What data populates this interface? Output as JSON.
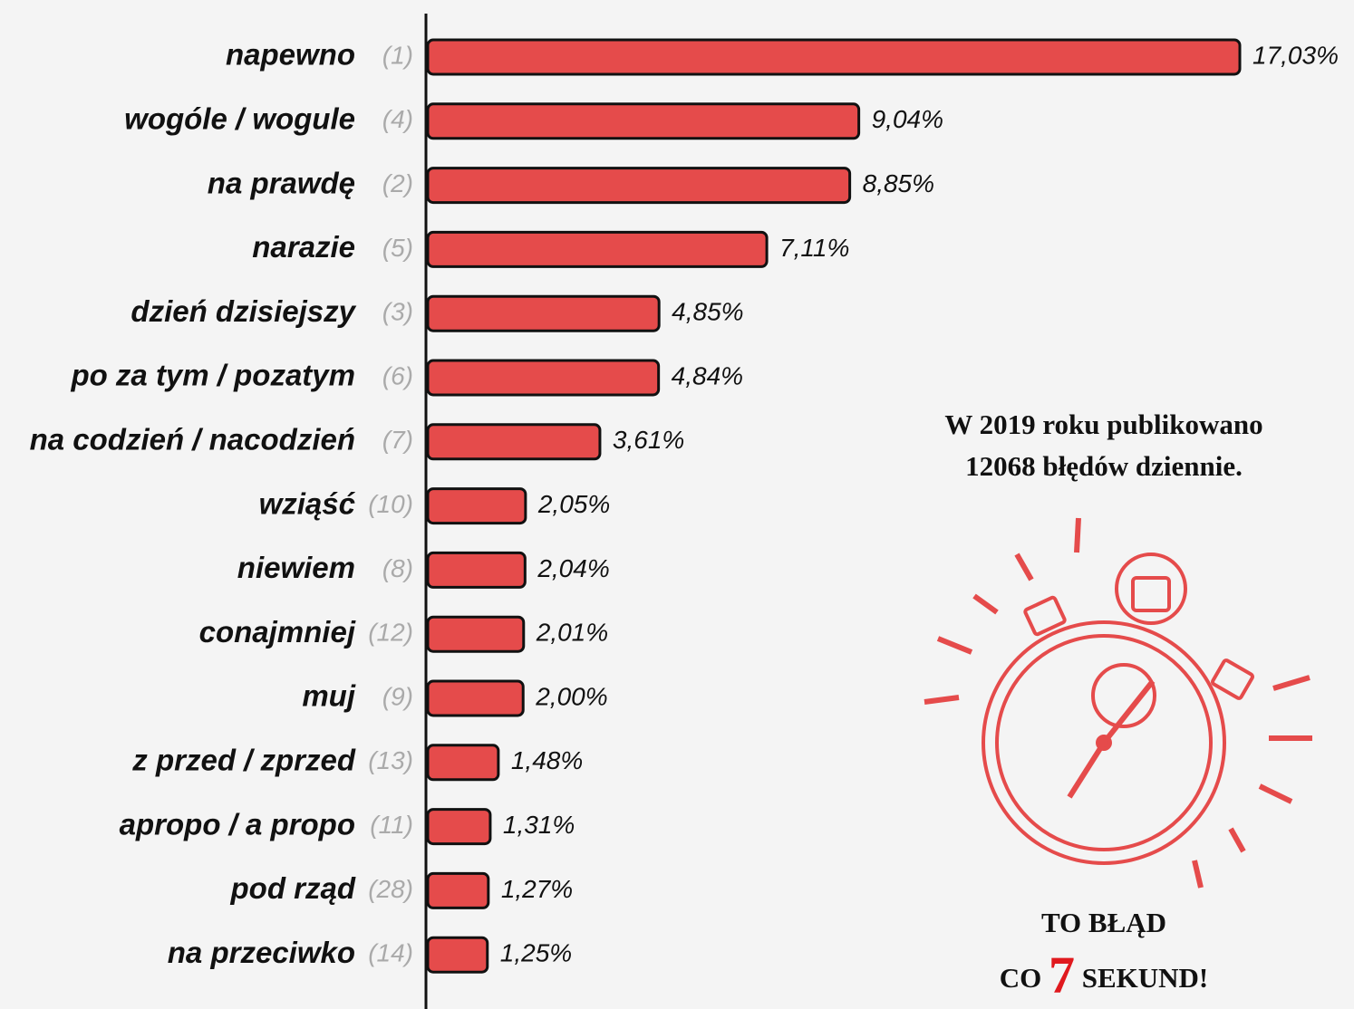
{
  "chart_data": {
    "type": "bar",
    "orientation": "horizontal",
    "categories": [
      "napewno",
      "wogóle / wogule",
      "na  prawdę",
      "narazie",
      "dzień dzisiejszy",
      "po za tym / pozatym",
      "na codzień / nacodzień",
      "wziąść",
      "niewiem",
      "conajmniej",
      "muj",
      "z przed / zprzed",
      "apropo / a propo",
      "pod rząd",
      "na przeciwko"
    ],
    "category_ranks": [
      "(1)",
      "(4)",
      "(2)",
      "(5)",
      "(3)",
      "(6)",
      "(7)",
      "(10)",
      "(8)",
      "(12)",
      "(9)",
      "(13)",
      "(11)",
      "(28)",
      "(14)"
    ],
    "values": [
      17.03,
      9.04,
      8.85,
      7.11,
      4.85,
      4.84,
      3.61,
      2.05,
      2.04,
      2.01,
      2.0,
      1.48,
      1.31,
      1.27,
      1.25
    ],
    "value_labels": [
      "17,03%",
      "9,04%",
      "8,85%",
      "7,11%",
      "4,85%",
      "4,84%",
      "3,61%",
      "2,05%",
      "2,04%",
      "2,01%",
      "2,00%",
      "1,48%",
      "1,31%",
      "1,27%",
      "1,25%"
    ],
    "color": "#e54b4b",
    "xlim": [
      0,
      17.03
    ],
    "annotations": {
      "note": [
        "W 2019 roku publikowano",
        "12068 błędów dziennie."
      ],
      "callout": [
        "TO BŁĄD",
        "CO",
        "7",
        "SEKUND!"
      ]
    }
  }
}
